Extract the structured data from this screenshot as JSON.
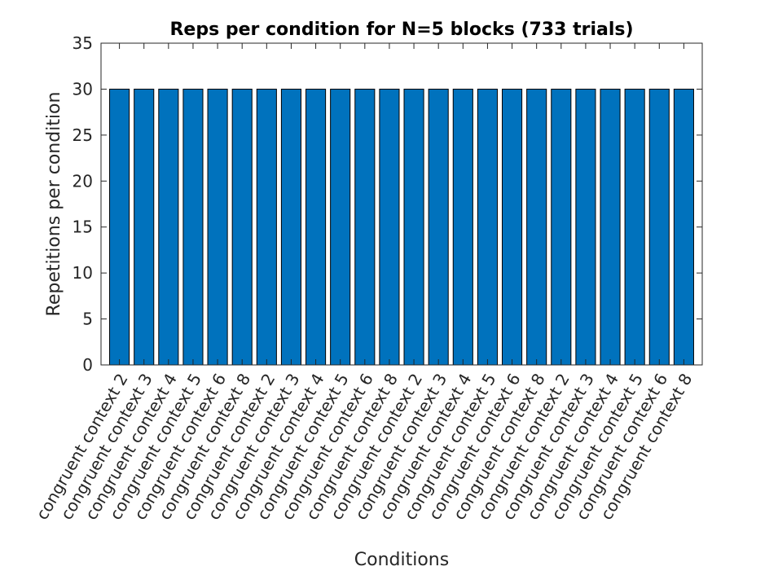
{
  "chart_data": {
    "type": "bar",
    "title": "Reps per condition for N=5 blocks (733 trials)",
    "xlabel": "Conditions",
    "ylabel": "Repetitions per condition",
    "ylim": [
      0,
      35
    ],
    "yticks": [
      0,
      5,
      10,
      15,
      20,
      25,
      30,
      35
    ],
    "grid": false,
    "bar_color": "#0072BD",
    "categories": [
      "congruent context 2",
      "congruent context 3",
      "congruent context 4",
      "congruent context 5",
      "congruent context 6",
      "congruent context 8",
      "congruent context 2",
      "congruent context 3",
      "congruent context 4",
      "congruent context 5",
      "congruent context 6",
      "congruent context 8",
      "congruent context 2",
      "congruent context 3",
      "congruent context 4",
      "congruent context 5",
      "congruent context 6",
      "congruent context 8",
      "congruent context 2",
      "congruent context 3",
      "congruent context 4",
      "congruent context 5",
      "congruent context 6",
      "congruent context 8"
    ],
    "values": [
      30,
      30,
      30,
      30,
      30,
      30,
      30,
      30,
      30,
      30,
      30,
      30,
      30,
      30,
      30,
      30,
      30,
      30,
      30,
      30,
      30,
      30,
      30,
      30
    ]
  }
}
